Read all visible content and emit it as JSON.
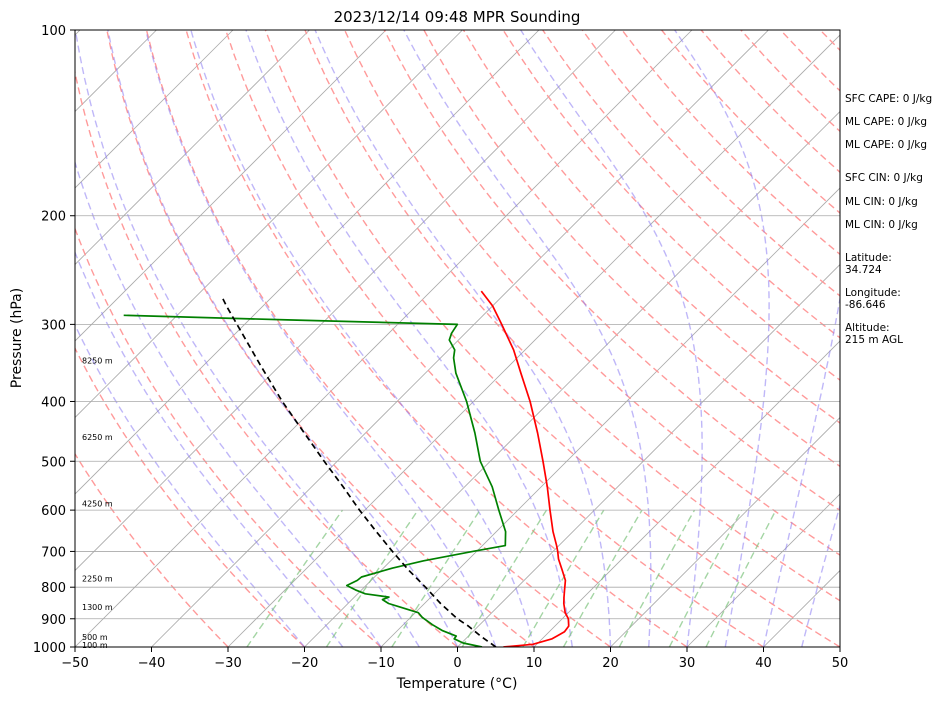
{
  "chart_data": {
    "type": "line",
    "title": "2023/12/14 09:48 MPR Sounding",
    "xlabel": "Temperature (°C)",
    "ylabel": "Pressure (hPa)",
    "xlim": [
      -50,
      50
    ],
    "ylim": [
      1000,
      100
    ],
    "y_scale": "log",
    "skew_degrees": 45,
    "x_ticks": [
      -50,
      -40,
      -30,
      -20,
      -10,
      0,
      10,
      20,
      30,
      40,
      50
    ],
    "y_ticks": [
      1000,
      900,
      800,
      700,
      600,
      500,
      400,
      300,
      200,
      100
    ],
    "x_tick_labels": [
      "−50",
      "−40",
      "−30",
      "−20",
      "−10",
      "0",
      "10",
      "20",
      "30",
      "40",
      "50"
    ],
    "y_tick_labels": [
      "1000",
      "900",
      "800",
      "700",
      "600",
      "500",
      "400",
      "300",
      "200",
      "100"
    ],
    "grid": true,
    "height_labels": [
      {
        "p": 1000,
        "text": "100 m"
      },
      {
        "p": 970,
        "text": "500 m"
      },
      {
        "p": 868,
        "text": "1300 m"
      },
      {
        "p": 780,
        "text": "2250 m"
      },
      {
        "p": 590,
        "text": "4250 m"
      },
      {
        "p": 460,
        "text": "6250 m"
      },
      {
        "p": 346,
        "text": "8250 m"
      }
    ],
    "series": [
      {
        "color": "#ff0000",
        "points": [
          [
            1000,
            6.0
          ],
          [
            990,
            9.5
          ],
          [
            970,
            11.3
          ],
          [
            945,
            12.0
          ],
          [
            925,
            11.8
          ],
          [
            900,
            10.8
          ],
          [
            880,
            9.6
          ],
          [
            850,
            8.2
          ],
          [
            830,
            7.4
          ],
          [
            810,
            6.6
          ],
          [
            780,
            5.4
          ],
          [
            750,
            3.6
          ],
          [
            720,
            1.7
          ],
          [
            700,
            0.6
          ],
          [
            685,
            -0.3
          ],
          [
            650,
            -2.6
          ],
          [
            600,
            -5.8
          ],
          [
            550,
            -9.2
          ],
          [
            500,
            -13.1
          ],
          [
            450,
            -17.5
          ],
          [
            400,
            -22.6
          ],
          [
            360,
            -27.5
          ],
          [
            330,
            -31.5
          ],
          [
            300,
            -36.4
          ],
          [
            280,
            -40.0
          ],
          [
            265,
            -43.4
          ]
        ]
      },
      {
        "color": "#008000",
        "points": [
          [
            1000,
            3.2
          ],
          [
            985,
            0.2
          ],
          [
            970,
            -1.5
          ],
          [
            960,
            -1.6
          ],
          [
            940,
            -4.2
          ],
          [
            920,
            -6.2
          ],
          [
            895,
            -8.5
          ],
          [
            880,
            -9.6
          ],
          [
            860,
            -13.0
          ],
          [
            850,
            -14.7
          ],
          [
            838,
            -16.0
          ],
          [
            830,
            -15.5
          ],
          [
            820,
            -19.0
          ],
          [
            808,
            -20.8
          ],
          [
            795,
            -22.5
          ],
          [
            780,
            -21.8
          ],
          [
            770,
            -21.7
          ],
          [
            745,
            -18.8
          ],
          [
            725,
            -15.7
          ],
          [
            700,
            -10.5
          ],
          [
            685,
            -7.0
          ],
          [
            650,
            -8.8
          ],
          [
            600,
            -12.5
          ],
          [
            550,
            -16.4
          ],
          [
            500,
            -21.3
          ],
          [
            450,
            -25.7
          ],
          [
            400,
            -30.9
          ],
          [
            360,
            -36.0
          ],
          [
            340,
            -38.3
          ],
          [
            330,
            -39.2
          ],
          [
            318,
            -41.2
          ],
          [
            310,
            -41.8
          ],
          [
            300,
            -42.2
          ],
          [
            295,
            -65.0
          ],
          [
            290,
            -87.0
          ]
        ]
      },
      {
        "color": "#000000",
        "dashed": true,
        "points": [
          [
            1000,
            5.0
          ],
          [
            960,
            1.6
          ],
          [
            925,
            -1.3
          ],
          [
            900,
            -3.7
          ],
          [
            850,
            -7.9
          ],
          [
            800,
            -12.0
          ],
          [
            750,
            -16.5
          ],
          [
            700,
            -21.0
          ],
          [
            650,
            -25.7
          ],
          [
            600,
            -30.7
          ],
          [
            550,
            -35.9
          ],
          [
            500,
            -41.7
          ],
          [
            450,
            -48.0
          ],
          [
            400,
            -55.0
          ],
          [
            350,
            -62.5
          ],
          [
            300,
            -71.0
          ],
          [
            280,
            -74.8
          ],
          [
            270,
            -76.7
          ]
        ]
      }
    ]
  },
  "stats": [
    "SFC CAPE: 0 J/kg",
    "ML CAPE: 0 J/kg",
    "ML CAPE: 0 J/kg",
    "SFC CIN: 0 J/kg",
    "ML CIN: 0 J/kg",
    "ML CIN: 0 J/kg"
  ],
  "location": {
    "latitude_label": "Latitude:",
    "latitude": "34.724",
    "longitude_label": "Longitude:",
    "longitude": "-86.646",
    "altitude_label": "Altitude:",
    "altitude": "215 m AGL"
  },
  "colors": {
    "dry_adiabat": "#ff9a9a",
    "moist_adiabat": "#8a7cf2",
    "mixing_ratio": "#7ec37e",
    "isotherm": "#a9a9a9"
  }
}
